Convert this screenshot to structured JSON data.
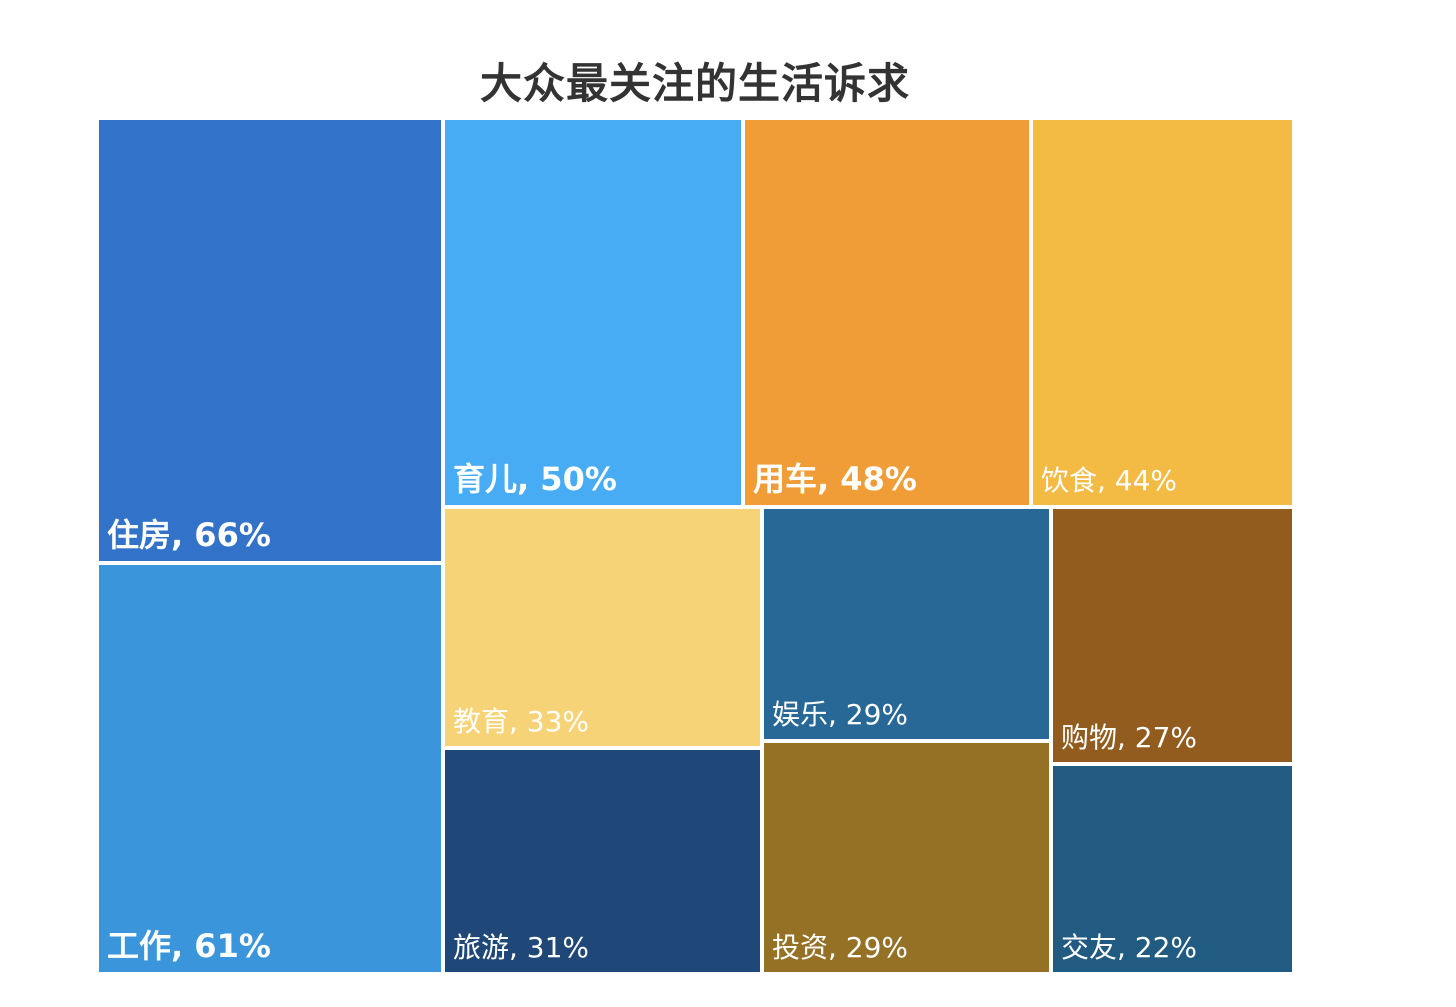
{
  "chart_data": {
    "type": "treemap",
    "title": "大众最关注的生活诉求",
    "items": [
      {
        "name": "住房",
        "value": 66,
        "label": "住房, 66%",
        "color": "#3273C9",
        "text_color": "#ffffff",
        "weight": "big"
      },
      {
        "name": "工作",
        "value": 61,
        "label": "工作, 61%",
        "color": "#3B95DA",
        "text_color": "#ffffff",
        "weight": "big"
      },
      {
        "name": "育儿",
        "value": 50,
        "label": "育儿, 50%",
        "color": "#47ACF4",
        "text_color": "#ffffff",
        "weight": "big"
      },
      {
        "name": "用车",
        "value": 48,
        "label": "用车, 48%",
        "color": "#F09D38",
        "text_color": "#ffffff",
        "weight": "big"
      },
      {
        "name": "饮食",
        "value": 44,
        "label": "饮食, 44%",
        "color": "#F4BB44",
        "text_color": "#ffffff",
        "weight": "small"
      },
      {
        "name": "教育",
        "value": 33,
        "label": "教育, 33%",
        "color": "#F7D377",
        "text_color": "#ffffff",
        "weight": "small"
      },
      {
        "name": "旅游",
        "value": 31,
        "label": "旅游, 31%",
        "color": "#1F4878",
        "text_color": "#ffffff",
        "weight": "small"
      },
      {
        "name": "娱乐",
        "value": 29,
        "label": "娱乐, 29%",
        "color": "#286897",
        "text_color": "#ffffff",
        "weight": "small"
      },
      {
        "name": "投资",
        "value": 29,
        "label": "投资, 29%",
        "color": "#957126",
        "text_color": "#ffffff",
        "weight": "small"
      },
      {
        "name": "购物",
        "value": 27,
        "label": "购物, 27%",
        "color": "#925C1E",
        "text_color": "#ffffff",
        "weight": "small"
      },
      {
        "name": "交友",
        "value": 22,
        "label": "交友, 22%",
        "color": "#225B82",
        "text_color": "#ffffff",
        "weight": "small"
      }
    ]
  }
}
